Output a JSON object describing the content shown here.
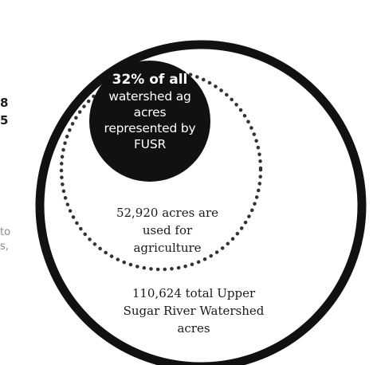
{
  "left_fragments": {
    "bold_lines": [
      "8",
      "5"
    ],
    "gray_lines": [
      "to",
      "s,"
    ]
  },
  "badge": {
    "headline": "32% of all",
    "lines": [
      "watershed ag",
      "acres",
      "represented by",
      "FUSR"
    ],
    "color": "#111111"
  },
  "agriculture": {
    "lines": [
      "52,920 acres are",
      "used for",
      "agriculture"
    ]
  },
  "watershed": {
    "lines": [
      "110,624 total Upper",
      "Sugar River Watershed",
      "acres"
    ],
    "ring_color": "#111111"
  }
}
